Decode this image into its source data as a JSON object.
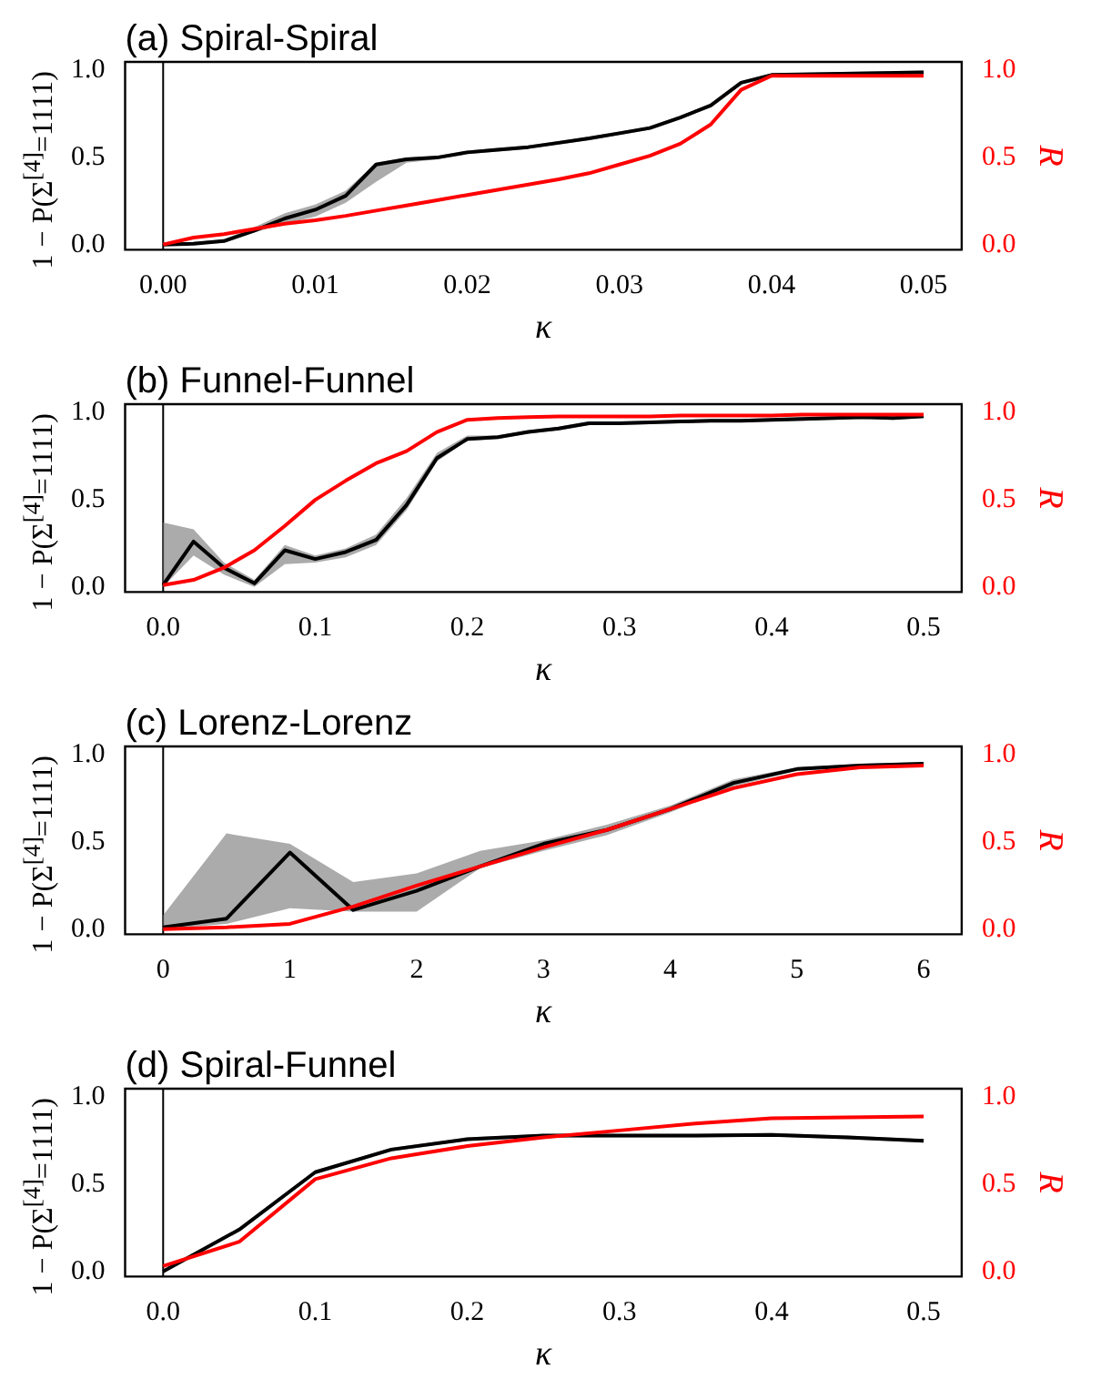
{
  "chart_data": [
    {
      "type": "line",
      "title": "(a) Spiral-Spiral",
      "xlabel": "κ",
      "ylabel": "1 − P(Σ$^{[4]}$=1111)",
      "y2label": "R",
      "x": [
        0,
        0.002,
        0.004,
        0.006,
        0.008,
        0.01,
        0.012,
        0.014,
        0.016,
        0.018,
        0.02,
        0.022,
        0.024,
        0.026,
        0.028,
        0.03,
        0.032,
        0.034,
        0.036,
        0.038,
        0.04,
        0.05
      ],
      "xlim": [
        -0.0025,
        0.0525
      ],
      "xticks": [
        {
          "value": 0,
          "label": "0.00"
        },
        {
          "value": 0.01,
          "label": "0.01"
        },
        {
          "value": 0.02,
          "label": "0.02"
        },
        {
          "value": 0.03,
          "label": "0.03"
        },
        {
          "value": 0.04,
          "label": "0.04"
        },
        {
          "value": 0.05,
          "label": "0.05"
        }
      ],
      "ylim": [
        -0.03,
        1.05
      ],
      "yticks": [
        {
          "value": 0,
          "label": "0.0"
        },
        {
          "value": 0.5,
          "label": "0.5"
        },
        {
          "value": 1,
          "label": "1.0"
        }
      ],
      "y2lim": [
        -0.03,
        1.05
      ],
      "y2ticks": [
        {
          "value": 0,
          "label": "0.0"
        },
        {
          "value": 0.5,
          "label": "0.5"
        },
        {
          "value": 1,
          "label": "1.0"
        }
      ],
      "ref_lines": [
        {
          "axis": "x",
          "value": 0,
          "color": "#000000"
        }
      ],
      "series": [
        {
          "color": "#000000",
          "values": [
            0,
            0.005,
            0.02,
            0.08,
            0.15,
            0.2,
            0.28,
            0.46,
            0.49,
            0.5,
            0.53,
            0.545,
            0.56,
            0.585,
            0.61,
            0.64,
            0.67,
            0.73,
            0.8,
            0.93,
            0.975,
            0.99
          ],
          "lower": [
            0,
            0,
            0.01,
            0.07,
            0.12,
            0.16,
            0.24,
            0.36,
            0.47,
            0.49,
            0.52,
            0.535,
            0.55,
            0.575,
            0.6,
            0.63,
            0.66,
            0.72,
            0.79,
            0.92,
            0.965,
            0.98
          ],
          "upper": [
            0.01,
            0.015,
            0.03,
            0.1,
            0.18,
            0.23,
            0.31,
            0.47,
            0.5,
            0.51,
            0.54,
            0.555,
            0.57,
            0.595,
            0.62,
            0.65,
            0.68,
            0.74,
            0.81,
            0.94,
            0.985,
            1
          ]
        },
        {
          "color": "#ff0000",
          "axis": "y2",
          "values": [
            0,
            0.04,
            0.06,
            0.09,
            0.12,
            0.14,
            0.165,
            0.195,
            0.225,
            0.255,
            0.285,
            0.315,
            0.345,
            0.375,
            0.41,
            0.46,
            0.51,
            0.58,
            0.69,
            0.89,
            0.97,
            0.97
          ]
        }
      ]
    },
    {
      "type": "line",
      "title": "(b) Funnel-Funnel",
      "xlabel": "κ",
      "ylabel": "1 − P(Σ$^{[4]}$=1111)",
      "y2label": "R",
      "x": [
        0,
        0.02,
        0.04,
        0.06,
        0.08,
        0.1,
        0.12,
        0.14,
        0.16,
        0.18,
        0.2,
        0.22,
        0.24,
        0.26,
        0.28,
        0.3,
        0.32,
        0.34,
        0.36,
        0.38,
        0.4,
        0.42,
        0.44,
        0.46,
        0.48,
        0.5
      ],
      "xlim": [
        -0.025,
        0.525
      ],
      "xticks": [
        {
          "value": 0,
          "label": "0.0"
        },
        {
          "value": 0.1,
          "label": "0.1"
        },
        {
          "value": 0.2,
          "label": "0.2"
        },
        {
          "value": 0.3,
          "label": "0.3"
        },
        {
          "value": 0.4,
          "label": "0.4"
        },
        {
          "value": 0.5,
          "label": "0.5"
        }
      ],
      "ylim": [
        -0.03,
        1.05
      ],
      "yticks": [
        {
          "value": 0,
          "label": "0.0"
        },
        {
          "value": 0.5,
          "label": "0.5"
        },
        {
          "value": 1,
          "label": "1.0"
        }
      ],
      "y2lim": [
        -0.03,
        1.05
      ],
      "y2ticks": [
        {
          "value": 0,
          "label": "0.0"
        },
        {
          "value": 0.5,
          "label": "0.5"
        },
        {
          "value": 1,
          "label": "1.0"
        }
      ],
      "ref_lines": [
        {
          "axis": "x",
          "value": 0,
          "color": "#000000"
        }
      ],
      "series": [
        {
          "color": "#000000",
          "values": [
            0.01,
            0.26,
            0.11,
            0.02,
            0.21,
            0.16,
            0.2,
            0.27,
            0.47,
            0.74,
            0.85,
            0.86,
            0.89,
            0.91,
            0.94,
            0.94,
            0.945,
            0.95,
            0.955,
            0.955,
            0.96,
            0.965,
            0.97,
            0.975,
            0.97,
            0.98
          ],
          "lower": [
            0,
            0.18,
            0.07,
            0,
            0.13,
            0.14,
            0.17,
            0.24,
            0.44,
            0.72,
            0.84,
            0.85,
            0.88,
            0.9,
            0.93,
            0.93,
            0.935,
            0.94,
            0.945,
            0.945,
            0.95,
            0.955,
            0.96,
            0.965,
            0.96,
            0.97
          ],
          "upper": [
            0.37,
            0.33,
            0.14,
            0.04,
            0.24,
            0.18,
            0.22,
            0.3,
            0.51,
            0.77,
            0.87,
            0.87,
            0.9,
            0.92,
            0.95,
            0.95,
            0.955,
            0.96,
            0.965,
            0.965,
            0.97,
            0.975,
            0.98,
            0.985,
            0.98,
            0.99
          ]
        },
        {
          "color": "#ff0000",
          "axis": "y2",
          "values": [
            0.01,
            0.04,
            0.11,
            0.21,
            0.35,
            0.5,
            0.61,
            0.71,
            0.78,
            0.89,
            0.96,
            0.97,
            0.975,
            0.98,
            0.98,
            0.98,
            0.98,
            0.985,
            0.985,
            0.985,
            0.985,
            0.99,
            0.99,
            0.99,
            0.99,
            0.99
          ]
        }
      ]
    },
    {
      "type": "line",
      "title": "(c) Lorenz-Lorenz",
      "xlabel": "κ",
      "ylabel": "1 − P(Σ$^{[4]}$=1111)",
      "y2label": "R",
      "x": [
        0,
        0.5,
        1,
        1.5,
        2,
        2.5,
        3,
        3.5,
        4,
        4.5,
        5,
        5.5,
        6
      ],
      "xlim": [
        -0.3,
        6.3
      ],
      "xticks": [
        0,
        1,
        2,
        3,
        4,
        5,
        6
      ],
      "ylim": [
        -0.03,
        1.05
      ],
      "yticks": [
        {
          "value": 0,
          "label": "0.0"
        },
        {
          "value": 0.5,
          "label": "0.5"
        },
        {
          "value": 1,
          "label": "1.0"
        }
      ],
      "y2lim": [
        -0.03,
        1.05
      ],
      "y2ticks": [
        {
          "value": 0,
          "label": "0.0"
        },
        {
          "value": 0.5,
          "label": "0.5"
        },
        {
          "value": 1,
          "label": "1.0"
        }
      ],
      "ref_lines": [
        {
          "axis": "x",
          "value": 0,
          "color": "#000000"
        }
      ],
      "series": [
        {
          "color": "#000000",
          "values": [
            0.01,
            0.06,
            0.44,
            0.11,
            0.22,
            0.36,
            0.49,
            0.57,
            0.69,
            0.84,
            0.92,
            0.94,
            0.95
          ],
          "lower": [
            0,
            0.03,
            0.12,
            0.1,
            0.1,
            0.35,
            0.45,
            0.54,
            0.67,
            0.82,
            0.91,
            0.93,
            0.94
          ],
          "upper": [
            0.08,
            0.55,
            0.49,
            0.27,
            0.32,
            0.45,
            0.51,
            0.6,
            0.71,
            0.86,
            0.93,
            0.95,
            0.96
          ]
        },
        {
          "color": "#ff0000",
          "axis": "y2",
          "values": [
            0,
            0.01,
            0.03,
            0.13,
            0.25,
            0.36,
            0.47,
            0.57,
            0.69,
            0.81,
            0.89,
            0.93,
            0.94
          ]
        }
      ]
    },
    {
      "type": "line",
      "title": "(d) Spiral-Funnel",
      "xlabel": "κ",
      "ylabel": "1 − P(Σ$^{[4]}$=1111)",
      "y2label": "R",
      "x": [
        0,
        0.05,
        0.1,
        0.15,
        0.2,
        0.25,
        0.3,
        0.35,
        0.4,
        0.45,
        0.5
      ],
      "xlim": [
        -0.025,
        0.525
      ],
      "xticks": [
        {
          "value": 0,
          "label": "0.0"
        },
        {
          "value": 0.1,
          "label": "0.1"
        },
        {
          "value": 0.2,
          "label": "0.2"
        },
        {
          "value": 0.3,
          "label": "0.3"
        },
        {
          "value": 0.4,
          "label": "0.4"
        },
        {
          "value": 0.5,
          "label": "0.5"
        }
      ],
      "ylim": [
        -0.03,
        1.05
      ],
      "yticks": [
        {
          "value": 0,
          "label": "0.0"
        },
        {
          "value": 0.5,
          "label": "0.5"
        },
        {
          "value": 1,
          "label": "1.0"
        }
      ],
      "y2lim": [
        -0.03,
        1.05
      ],
      "y2ticks": [
        {
          "value": 0,
          "label": "0.0"
        },
        {
          "value": 0.5,
          "label": "0.5"
        },
        {
          "value": 1,
          "label": "1.0"
        }
      ],
      "ref_lines": [
        {
          "axis": "x",
          "value": 0,
          "color": "#000000"
        }
      ],
      "series": [
        {
          "color": "#000000",
          "values": [
            0,
            0.24,
            0.57,
            0.7,
            0.76,
            0.78,
            0.78,
            0.78,
            0.785,
            0.77,
            0.75
          ],
          "lower": [
            0,
            0.23,
            0.56,
            0.69,
            0.75,
            0.77,
            0.77,
            0.77,
            0.775,
            0.76,
            0.74
          ],
          "upper": [
            0.01,
            0.25,
            0.58,
            0.71,
            0.77,
            0.79,
            0.79,
            0.79,
            0.795,
            0.78,
            0.76
          ]
        },
        {
          "color": "#ff0000",
          "axis": "y2",
          "values": [
            0.03,
            0.17,
            0.53,
            0.65,
            0.72,
            0.77,
            0.81,
            0.85,
            0.88,
            0.885,
            0.89
          ]
        }
      ]
    }
  ]
}
